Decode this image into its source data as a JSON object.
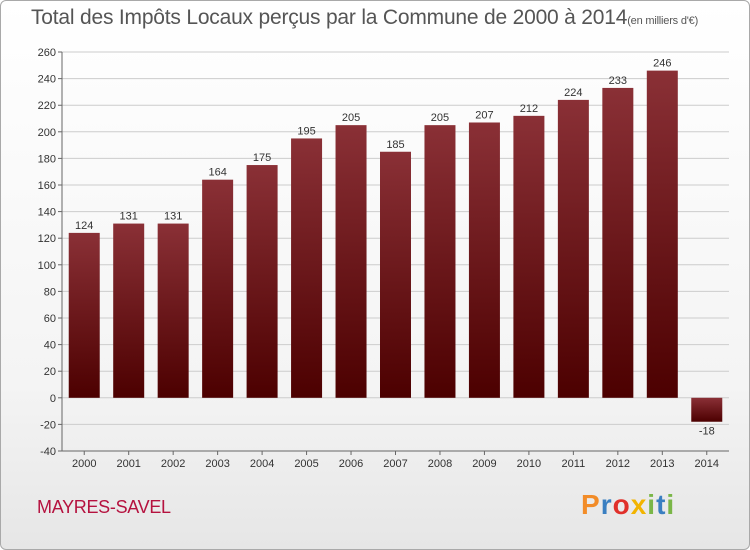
{
  "title": {
    "main": "Total des Impôts Locaux perçus par la Commune de 2000 à 2014",
    "unit": "(en milliers d'€)"
  },
  "commune": "MAYRES-SAVEL",
  "logo": {
    "letters": [
      "P",
      "r",
      "o",
      "x",
      "i",
      "t",
      "i"
    ],
    "colors": [
      "#f28c28",
      "#3a7fc1",
      "#e0302a",
      "#f2b400",
      "#7ab648",
      "#3a7fc1",
      "#7ab648"
    ]
  },
  "colors": {
    "bar_top": "#8a3036",
    "bar_bottom": "#4c0000",
    "grid": "#cccccc",
    "axis_text": "#333333"
  },
  "chart_data": {
    "type": "bar",
    "title": "Total des Impôts Locaux perçus par la Commune de 2000 à 2014",
    "ylabel": "en milliers d'€",
    "xlabel": "",
    "categories": [
      "2000",
      "2001",
      "2002",
      "2003",
      "2004",
      "2005",
      "2006",
      "2007",
      "2008",
      "2009",
      "2010",
      "2011",
      "2012",
      "2013",
      "2014"
    ],
    "values": [
      124,
      131,
      131,
      164,
      175,
      195,
      205,
      185,
      205,
      207,
      212,
      224,
      233,
      246,
      -18
    ],
    "value_labels": [
      "124",
      "131",
      "131",
      "164",
      "175",
      "195",
      "205",
      "185",
      "205",
      "207",
      "212",
      "224",
      "233",
      "246",
      "-18"
    ],
    "ylim": [
      -40,
      260
    ],
    "yticks": [
      -40,
      -20,
      0,
      20,
      40,
      60,
      80,
      100,
      120,
      140,
      160,
      180,
      200,
      220,
      240,
      260
    ],
    "ytick_labels": [
      "-40",
      "-20",
      "0",
      "20",
      "40",
      "60",
      "80",
      "100",
      "120",
      "140",
      "160",
      "180",
      "200",
      "220",
      "240",
      "260"
    ],
    "grid": true
  }
}
